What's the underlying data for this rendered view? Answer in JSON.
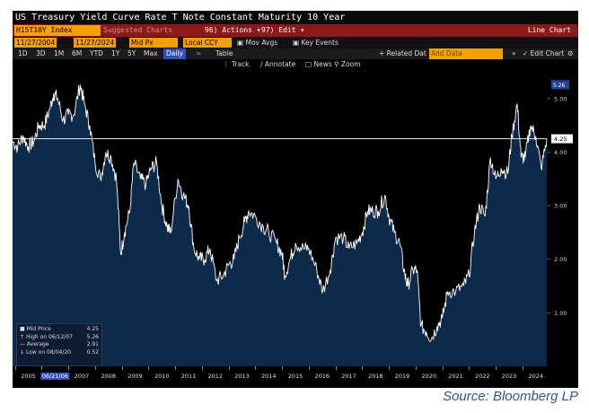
{
  "window_title": "US Treasury Yield Curve Rate T Note Constant Maturity 10 Year",
  "toolbar": {
    "ticker": "H15T10Y Index",
    "suggested": "Suggested Charts",
    "actions": "96) Actions ▾",
    "edit": "97) Edit ▾",
    "chart_type": "Line Chart"
  },
  "controls": {
    "start_date": "11/27/2004",
    "end_date": "11/27/2024",
    "field": "Mid Px",
    "currency": "Local CCY",
    "mov_avgs": "Mov Avgs",
    "key_events": "Key Events"
  },
  "timeframes": [
    "1D",
    "3D",
    "1M",
    "6M",
    "YTD",
    "1Y",
    "5Y",
    "Max"
  ],
  "frequency": "Daily",
  "table_label": "Table",
  "related": "+ Related Dat",
  "add_data_placeholder": "Add Data",
  "edit_chart": "Edit Chart",
  "tools": {
    "track": "Track",
    "annotate": "Annotate",
    "news": "News",
    "zoom": "Zoom"
  },
  "legend": {
    "mid_price_label": "Mid Price",
    "mid_price_value": "4.25",
    "high_label": "High on 06/12/07",
    "high_value": "5.26",
    "avg_label": "Average",
    "avg_value": "2.91",
    "low_label": "Low on 08/04/20",
    "low_value": "0.52"
  },
  "highlight_date": "06/21/06",
  "source": "Source: Bloomberg LP",
  "colors": {
    "area_fill": "#0e2a4a",
    "line": "#ffffff",
    "accent": "#f4a000",
    "toolbar": "#8a1a1a"
  },
  "chart_data": {
    "type": "area",
    "title": "US Treasury Yield Curve Rate T Note Constant Maturity 10 Year",
    "xlabel": "",
    "ylabel": "",
    "x_ticks": [
      "2005",
      "2006",
      "2007",
      "2008",
      "2009",
      "2010",
      "2011",
      "2012",
      "2013",
      "2014",
      "2015",
      "2016",
      "2017",
      "2018",
      "2019",
      "2020",
      "2021",
      "2022",
      "2023",
      "2024"
    ],
    "y_ticks": [
      1.0,
      2.0,
      3.0,
      4.0,
      5.0
    ],
    "ylim": [
      0.0,
      5.5
    ],
    "xlim": [
      2004.91,
      2024.91
    ],
    "current_value_label": "4.25",
    "axis_top_label": "5.26",
    "series": [
      {
        "x": [
          2004.91,
          2005.1,
          2005.3,
          2005.5,
          2005.7,
          2005.9,
          2006.1,
          2006.3,
          2006.45,
          2006.6,
          2006.8,
          2007.0,
          2007.2,
          2007.44,
          2007.6,
          2007.8,
          2008.0,
          2008.2,
          2008.4,
          2008.6,
          2008.8,
          2008.96,
          2009.1,
          2009.3,
          2009.45,
          2009.7,
          2009.9,
          2010.1,
          2010.3,
          2010.5,
          2010.7,
          2010.83,
          2011.1,
          2011.3,
          2011.5,
          2011.7,
          2011.9,
          2012.1,
          2012.3,
          2012.55,
          2012.8,
          2013.0,
          2013.2,
          2013.4,
          2013.6,
          2013.75,
          2014.0,
          2014.3,
          2014.5,
          2014.8,
          2015.0,
          2015.1,
          2015.3,
          2015.5,
          2015.8,
          2016.0,
          2016.3,
          2016.52,
          2016.8,
          2017.0,
          2017.3,
          2017.5,
          2017.8,
          2018.0,
          2018.2,
          2018.4,
          2018.6,
          2018.85,
          2019.0,
          2019.2,
          2019.4,
          2019.6,
          2019.7,
          2019.9,
          2020.05,
          2020.2,
          2020.4,
          2020.59,
          2020.8,
          2021.0,
          2021.2,
          2021.5,
          2021.8,
          2022.0,
          2022.2,
          2022.4,
          2022.6,
          2022.8,
          2023.0,
          2023.2,
          2023.45,
          2023.6,
          2023.8,
          2023.95,
          2024.1,
          2024.3,
          2024.5,
          2024.7,
          2024.91
        ],
        "y": [
          4.2,
          4.1,
          4.3,
          4.1,
          4.2,
          4.5,
          4.5,
          4.8,
          5.1,
          5.0,
          4.6,
          4.7,
          4.7,
          5.26,
          4.9,
          4.5,
          3.8,
          3.5,
          4.0,
          3.9,
          3.5,
          2.1,
          2.5,
          2.9,
          3.8,
          3.5,
          3.4,
          3.7,
          3.8,
          3.0,
          2.6,
          2.5,
          3.5,
          3.2,
          3.0,
          2.2,
          2.0,
          2.0,
          2.2,
          1.6,
          1.7,
          1.9,
          2.0,
          2.4,
          2.7,
          2.9,
          2.8,
          2.6,
          2.5,
          2.3,
          2.1,
          1.7,
          2.0,
          2.3,
          2.2,
          2.2,
          1.8,
          1.4,
          1.8,
          2.4,
          2.4,
          2.2,
          2.3,
          2.5,
          2.9,
          2.9,
          2.9,
          3.2,
          2.8,
          2.5,
          2.3,
          1.7,
          1.5,
          1.8,
          1.8,
          0.75,
          0.65,
          0.52,
          0.75,
          0.9,
          1.4,
          1.4,
          1.5,
          1.7,
          2.5,
          3.0,
          2.8,
          3.9,
          3.5,
          3.7,
          3.6,
          4.3,
          4.9,
          3.9,
          3.9,
          4.5,
          4.3,
          3.7,
          4.25
        ]
      }
    ]
  }
}
